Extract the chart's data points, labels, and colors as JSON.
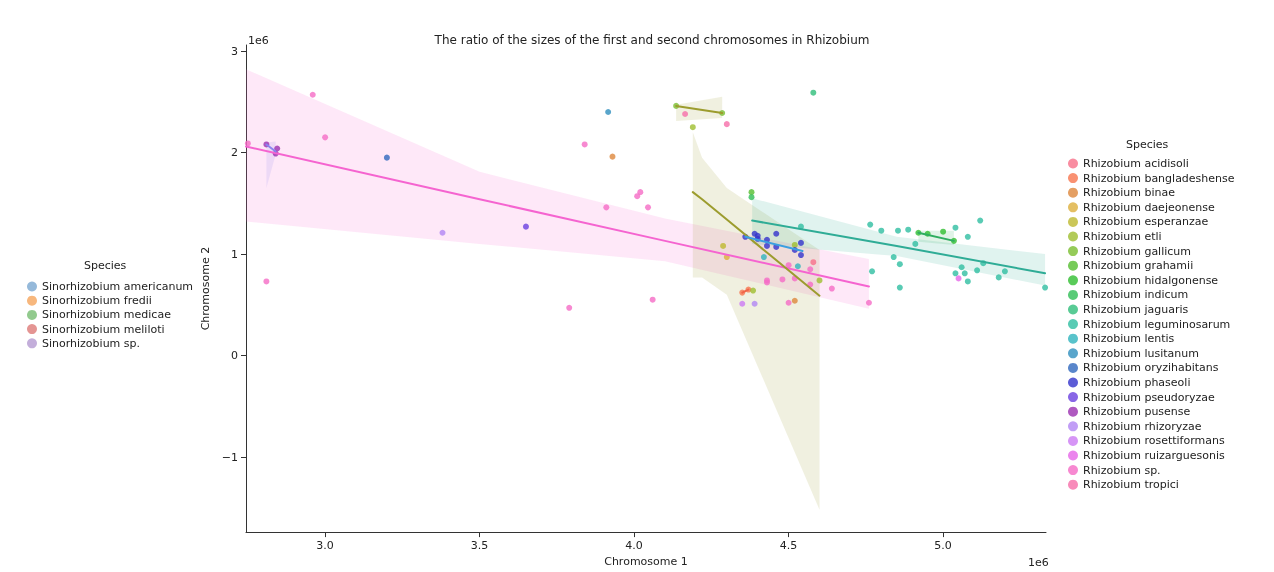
{
  "chart_data": [
    {
      "type": "other",
      "legend_title": "Species",
      "legend": "right",
      "series": [
        {
          "name": "Sinorhizobium americanum",
          "color": "#7aa7d1"
        },
        {
          "name": "Sinorhizobium fredii",
          "color": "#f5a55d"
        },
        {
          "name": "Sinorhizobium medicae",
          "color": "#77bd72"
        },
        {
          "name": "Sinorhizobium meliloti",
          "color": "#dd7a78"
        },
        {
          "name": "Sinorhizobium sp.",
          "color": "#b49ad1"
        }
      ]
    },
    {
      "type": "scatter",
      "title": "The ratio of the sizes of the first and second chromosomes in Rhizobium",
      "xlabel": "Chromosome 1",
      "ylabel": "Chromosome 2",
      "legend_title": "Species",
      "legend": "right",
      "annotations": [
        "1e6",
        "1e6"
      ],
      "xlim": [
        2.744,
        5.333
      ],
      "ylim": [
        -1.74,
        3.06
      ],
      "xticks": [
        {
          "value": 3,
          "label": "3.0"
        },
        {
          "value": 3.5,
          "label": "3.5"
        },
        {
          "value": 4,
          "label": "4.0"
        },
        {
          "value": 4.5,
          "label": "4.5"
        },
        {
          "value": 5,
          "label": "5.0"
        }
      ],
      "yticks": [
        {
          "value": -1,
          "label": "−1"
        },
        0,
        1,
        2,
        3
      ],
      "grid": false,
      "series": [
        {
          "name": "Rhizobium acidisoli",
          "color": "#f77189",
          "x": [
            4.58
          ],
          "values": [
            0.92
          ]
        },
        {
          "name": "Rhizobium bangladeshense",
          "color": "#f7754f",
          "x": [
            4.35,
            4.37
          ],
          "values": [
            0.62,
            0.65
          ]
        },
        {
          "name": "Rhizobium binae",
          "color": "#dd873c",
          "x": [
            4.52,
            3.93
          ],
          "values": [
            0.54,
            1.96
          ]
        },
        {
          "name": "Rhizobium daejeonense",
          "color": "#ddaf3c",
          "x": [
            4.3
          ],
          "values": [
            0.97
          ]
        },
        {
          "name": "Rhizobium esperanzae",
          "color": "#beb92f",
          "x": [
            4.288
          ],
          "values": [
            1.08
          ]
        },
        {
          "name": "Rhizobium etli",
          "color": "#9fbe2f",
          "x": [
            4.19,
            4.52,
            4.6,
            4.385
          ],
          "values": [
            2.25,
            1.09,
            0.74,
            0.64
          ]
        },
        {
          "name": "Rhizobium gallicum",
          "color": "#7bbe2f",
          "x": [
            4.136,
            4.285
          ],
          "values": [
            2.46,
            2.39
          ]
        },
        {
          "name": "Rhizobium grahamii",
          "color": "#55be2f",
          "x": [
            4.38
          ],
          "values": [
            1.61
          ]
        },
        {
          "name": "Rhizobium hidalgonense",
          "color": "#2fbe2f",
          "x": [
            4.92,
            4.95,
            5.0,
            5.035
          ],
          "values": [
            1.21,
            1.2,
            1.22,
            1.13
          ]
        },
        {
          "name": "Rhizobium indicum",
          "color": "#2fbe55",
          "x": [
            4.38
          ],
          "values": [
            1.56
          ]
        },
        {
          "name": "Rhizobium jaguaris",
          "color": "#2fbe7b",
          "x": [
            4.58
          ],
          "values": [
            2.59
          ]
        },
        {
          "name": "Rhizobium leguminosarum",
          "color": "#2fbea1",
          "x": [
            4.764,
            4.8,
            4.854,
            4.887,
            5.04,
            5.12,
            5.08,
            4.91,
            4.84,
            4.86,
            4.77,
            4.86,
            5.04,
            5.07,
            5.06,
            5.08,
            5.11,
            5.13,
            5.18,
            5.2,
            5.33,
            4.54
          ],
          "values": [
            1.29,
            1.23,
            1.23,
            1.24,
            1.26,
            1.33,
            1.17,
            1.1,
            0.97,
            0.9,
            0.83,
            0.67,
            0.81,
            0.81,
            0.87,
            0.73,
            0.84,
            0.91,
            0.77,
            0.83,
            0.67,
            1.27
          ]
        },
        {
          "name": "Rhizobium lentis",
          "color": "#2fb4be",
          "x": [
            4.42,
            4.53
          ],
          "values": [
            0.97,
            0.88
          ]
        },
        {
          "name": "Rhizobium lusitanum",
          "color": "#2f8ebe",
          "x": [
            3.916
          ],
          "values": [
            2.4
          ]
        },
        {
          "name": "Rhizobium oryzihabitans",
          "color": "#2f68be",
          "x": [
            3.2
          ],
          "values": [
            1.95
          ]
        },
        {
          "name": "Rhizobium phaseoli",
          "color": "#3333cc",
          "x": [
            4.36,
            4.39,
            4.4,
            4.4,
            4.43,
            4.46,
            4.43,
            4.46,
            4.54,
            4.54,
            4.52
          ],
          "values": [
            1.17,
            1.2,
            1.18,
            1.15,
            1.14,
            1.2,
            1.08,
            1.07,
            1.11,
            0.99,
            1.04
          ]
        },
        {
          "name": "Rhizobium pseudoryzae",
          "color": "#6a40e0",
          "x": [
            3.65
          ],
          "values": [
            1.27
          ]
        },
        {
          "name": "Rhizobium pusense",
          "color": "#9b30b0",
          "x": [
            2.81,
            2.845,
            2.84
          ],
          "values": [
            2.08,
            2.04,
            1.99
          ]
        },
        {
          "name": "Rhizobium rhizoryzae",
          "color": "#b186f4",
          "x": [
            3.38,
            4.39
          ],
          "values": [
            1.21,
            0.51
          ]
        },
        {
          "name": "Rhizobium rosettiformans",
          "color": "#cc7af4",
          "x": [
            4.35
          ],
          "values": [
            0.51
          ]
        },
        {
          "name": "Rhizobium ruizarguesonis",
          "color": "#e667e8",
          "x": [
            5.05
          ],
          "values": [
            0.76
          ]
        },
        {
          "name": "Rhizobium sp.",
          "color": "#f56cc5",
          "x": [
            2.96,
            3.0,
            2.81,
            2.75,
            3.84,
            3.79,
            4.06,
            3.91,
            4.01,
            4.02,
            4.045,
            4.43,
            4.43,
            4.48,
            4.52,
            4.5,
            4.57,
            4.57,
            4.64,
            4.76,
            4.5
          ],
          "values": [
            2.57,
            2.15,
            0.73,
            2.09,
            2.08,
            0.47,
            0.55,
            1.46,
            1.57,
            1.61,
            1.46,
            0.74,
            0.72,
            0.75,
            0.76,
            0.89,
            0.85,
            0.7,
            0.66,
            0.52,
            0.52
          ]
        },
        {
          "name": "Rhizobium tropici",
          "color": "#f66ea9",
          "x": [
            4.165,
            4.3
          ],
          "values": [
            2.38,
            2.28
          ]
        },
        {
          "type": "line",
          "color": "#f564d0",
          "x": [
            2.744,
            3.5,
            4.1,
            4.76
          ],
          "values": [
            2.06,
            1.54,
            1.13,
            0.68
          ],
          "lower": [
            1.32,
            1.1,
            0.93,
            0.46
          ],
          "upper": [
            2.82,
            1.81,
            1.35,
            0.95
          ]
        },
        {
          "type": "line",
          "color": "#9c9c2e",
          "x": [
            4.19,
            4.22,
            4.3,
            4.6
          ],
          "values": [
            1.61,
            1.54,
            1.34,
            0.59
          ],
          "lower": [
            0.77,
            0.77,
            0.6,
            -1.52
          ],
          "upper": [
            2.2,
            1.95,
            1.65,
            1.04
          ]
        },
        {
          "type": "line",
          "color": "#9c9c2e",
          "x": [
            4.136,
            4.285
          ],
          "values": [
            2.46,
            2.39
          ],
          "lower": [
            2.31,
            2.34
          ],
          "upper": [
            2.47,
            2.55
          ]
        },
        {
          "type": "line",
          "color": "#2fac96",
          "x": [
            4.382,
            4.85,
            5.33
          ],
          "values": [
            1.33,
            1.08,
            0.81
          ],
          "lower": [
            1.1,
            0.98,
            0.69
          ],
          "upper": [
            1.55,
            1.17,
            1.0
          ]
        },
        {
          "type": "line",
          "color": "#2fad60",
          "x": [
            4.92,
            5.035
          ],
          "values": [
            1.21,
            1.13
          ],
          "lower": [
            1.12,
            1.09
          ],
          "upper": [
            1.23,
            1.23
          ]
        },
        {
          "type": "line",
          "color": "#3a9fe0",
          "x": [
            4.36,
            4.545
          ],
          "values": [
            1.17,
            1.03
          ]
        },
        {
          "type": "line",
          "color": "#f0654a",
          "x": [
            4.35,
            4.37
          ],
          "values": [
            0.62,
            0.65
          ]
        },
        {
          "type": "line",
          "color": "#8a84ee",
          "x": [
            2.81,
            2.84
          ],
          "values": [
            2.08,
            2.01
          ],
          "lower": [
            1.65,
            1.98
          ],
          "upper": [
            2.1,
            2.11
          ]
        }
      ]
    }
  ]
}
